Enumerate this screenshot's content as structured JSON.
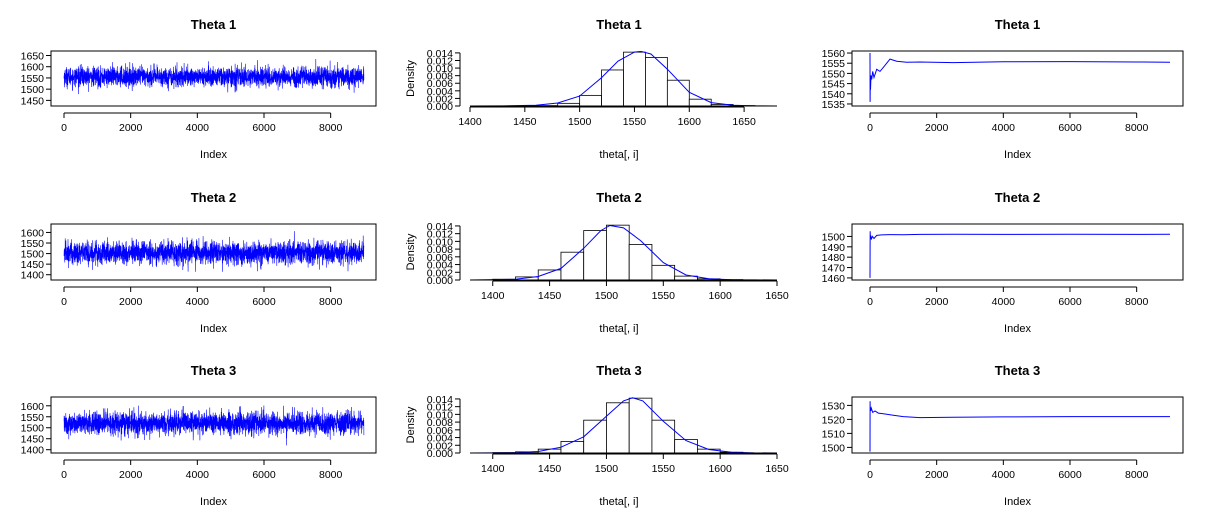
{
  "colors": {
    "line": "#0000ff",
    "axis": "#000000",
    "hist_fill": "#ffffff",
    "background": "#ffffff"
  },
  "chart_data": [
    {
      "panel": "trace-1",
      "type": "line",
      "title": "Theta 1",
      "xlabel": "Index",
      "ylabel": "",
      "xlim": [
        0,
        9000
      ],
      "ylim": [
        1425,
        1670
      ],
      "xticks": [
        0,
        2000,
        4000,
        6000,
        8000
      ],
      "yticks": [
        1450,
        1500,
        1550,
        1600,
        1650
      ],
      "n_iterations": 9000,
      "center": 1555,
      "spread": 22,
      "range": [
        1425,
        1670
      ],
      "grid": false
    },
    {
      "panel": "hist-1",
      "type": "bar",
      "title": "Theta 1",
      "xlabel": "theta[, i]",
      "ylabel": "Density",
      "xlim": [
        1400,
        1680
      ],
      "ylim": [
        0,
        0.0145
      ],
      "xticks": [
        1400,
        1450,
        1500,
        1550,
        1600,
        1650
      ],
      "yticks": [
        0.0,
        0.002,
        0.004,
        0.006,
        0.008,
        0.01,
        0.012,
        0.014
      ],
      "ytick_labels": [
        "0.000",
        "0.002",
        "0.004",
        "0.006",
        "0.008",
        "0.010",
        "0.012",
        "0.014"
      ],
      "bin_edges": [
        1460,
        1480,
        1500,
        1520,
        1540,
        1560,
        1580,
        1600,
        1620,
        1640,
        1660
      ],
      "values": [
        0.0001,
        0.0007,
        0.0028,
        0.0095,
        0.0142,
        0.0128,
        0.0068,
        0.0018,
        0.0004,
        0.0001
      ],
      "density_curve": {
        "x": [
          1400,
          1430,
          1460,
          1480,
          1500,
          1520,
          1535,
          1550,
          1556,
          1565,
          1580,
          1600,
          1620,
          1640,
          1660,
          1680
        ],
        "y": [
          0,
          2e-05,
          0.0002,
          0.0008,
          0.0026,
          0.0075,
          0.0118,
          0.0142,
          0.0144,
          0.0137,
          0.0097,
          0.0036,
          0.0009,
          0.00018,
          3e-05,
          0
        ]
      },
      "series": [
        {
          "name": "",
          "role": "density"
        }
      ],
      "grid": false
    },
    {
      "panel": "running-mean-1",
      "type": "line",
      "title": "Theta 1",
      "xlabel": "Index",
      "ylabel": "",
      "xlim": [
        0,
        9000
      ],
      "ylim": [
        1534,
        1561
      ],
      "xticks": [
        0,
        2000,
        4000,
        6000,
        8000
      ],
      "yticks": [
        1535,
        1540,
        1545,
        1550,
        1555,
        1560
      ],
      "x": [
        1,
        4,
        8,
        15,
        30,
        50,
        80,
        120,
        200,
        300,
        450,
        600,
        800,
        1100,
        1500,
        2500,
        4000,
        6000,
        8000,
        9000
      ],
      "y": [
        1560,
        1536,
        1548,
        1542,
        1549,
        1547,
        1551,
        1548,
        1552,
        1551,
        1554,
        1557,
        1556,
        1555.5,
        1555.6,
        1555.3,
        1555.7,
        1555.8,
        1555.6,
        1555.5
      ],
      "grid": false
    },
    {
      "panel": "trace-2",
      "type": "line",
      "title": "Theta 2",
      "xlabel": "Index",
      "ylabel": "",
      "xlim": [
        0,
        9000
      ],
      "ylim": [
        1375,
        1640
      ],
      "xticks": [
        0,
        2000,
        4000,
        6000,
        8000
      ],
      "yticks": [
        1400,
        1450,
        1500,
        1550,
        1600
      ],
      "n_iterations": 9000,
      "center": 1503,
      "spread": 28,
      "range": [
        1385,
        1630
      ],
      "grid": false
    },
    {
      "panel": "hist-2",
      "type": "bar",
      "title": "Theta 2",
      "xlabel": "theta[, i]",
      "ylabel": "Density",
      "xlim": [
        1380,
        1650
      ],
      "ylim": [
        0,
        0.0145
      ],
      "xticks": [
        1400,
        1450,
        1500,
        1550,
        1600,
        1650
      ],
      "yticks": [
        0.0,
        0.002,
        0.004,
        0.006,
        0.008,
        0.01,
        0.012,
        0.014
      ],
      "ytick_labels": [
        "0.000",
        "0.002",
        "0.004",
        "0.006",
        "0.008",
        "0.010",
        "0.012",
        "0.014"
      ],
      "bin_edges": [
        1400,
        1420,
        1440,
        1460,
        1480,
        1500,
        1520,
        1540,
        1560,
        1580,
        1600,
        1620
      ],
      "values": [
        0.0002,
        0.0008,
        0.0026,
        0.0072,
        0.0128,
        0.0142,
        0.0092,
        0.0038,
        0.001,
        0.0003,
        0.0001
      ],
      "density_curve": {
        "x": [
          1380,
          1420,
          1440,
          1460,
          1480,
          1495,
          1503,
          1515,
          1530,
          1550,
          1570,
          1590,
          1610,
          1630,
          1650
        ],
        "y": [
          0,
          0.0002,
          0.0009,
          0.003,
          0.0082,
          0.0128,
          0.0141,
          0.0135,
          0.0102,
          0.0045,
          0.0013,
          0.0003,
          8e-05,
          2e-05,
          0
        ]
      },
      "series": [
        {
          "name": "",
          "role": "density"
        }
      ],
      "grid": false
    },
    {
      "panel": "running-mean-2",
      "type": "line",
      "title": "Theta 2",
      "xlabel": "Index",
      "ylabel": "",
      "xlim": [
        0,
        9000
      ],
      "ylim": [
        1458,
        1512
      ],
      "xticks": [
        0,
        2000,
        4000,
        6000,
        8000
      ],
      "yticks": [
        1460,
        1470,
        1480,
        1490,
        1500
      ],
      "x": [
        1,
        3,
        6,
        10,
        20,
        40,
        70,
        120,
        200,
        350,
        600,
        1000,
        1500,
        2500,
        4000,
        6000,
        8000,
        9000
      ],
      "y": [
        1460,
        1492,
        1505,
        1498,
        1501,
        1497,
        1500,
        1498,
        1501,
        1501.5,
        1501.8,
        1501.7,
        1502,
        1502.2,
        1502,
        1502.2,
        1502,
        1502.1
      ],
      "grid": false
    },
    {
      "panel": "trace-3",
      "type": "line",
      "title": "Theta 3",
      "xlabel": "Index",
      "ylabel": "",
      "xlim": [
        0,
        9000
      ],
      "ylim": [
        1385,
        1640
      ],
      "xticks": [
        0,
        2000,
        4000,
        6000,
        8000
      ],
      "yticks": [
        1400,
        1450,
        1500,
        1550,
        1600
      ],
      "n_iterations": 9000,
      "center": 1521,
      "spread": 26,
      "range": [
        1395,
        1630
      ],
      "grid": false
    },
    {
      "panel": "hist-3",
      "type": "bar",
      "title": "Theta 3",
      "xlabel": "theta[, i]",
      "ylabel": "Density",
      "xlim": [
        1380,
        1650
      ],
      "ylim": [
        0,
        0.0145
      ],
      "xticks": [
        1400,
        1450,
        1500,
        1550,
        1600,
        1650
      ],
      "yticks": [
        0.0,
        0.002,
        0.004,
        0.006,
        0.008,
        0.01,
        0.012,
        0.014
      ],
      "ytick_labels": [
        "0.000",
        "0.002",
        "0.004",
        "0.006",
        "0.008",
        "0.010",
        "0.012",
        "0.014"
      ],
      "bin_edges": [
        1400,
        1420,
        1440,
        1460,
        1480,
        1500,
        1520,
        1540,
        1560,
        1580,
        1600,
        1620
      ],
      "values": [
        0.0001,
        0.0003,
        0.001,
        0.003,
        0.0085,
        0.013,
        0.0142,
        0.0085,
        0.0035,
        0.001,
        0.0002
      ],
      "density_curve": {
        "x": [
          1380,
          1420,
          1440,
          1460,
          1480,
          1500,
          1515,
          1523,
          1532,
          1550,
          1570,
          1590,
          1610,
          1630,
          1650
        ],
        "y": [
          0,
          8e-05,
          0.0004,
          0.0015,
          0.0042,
          0.0095,
          0.0135,
          0.0143,
          0.0135,
          0.0082,
          0.0032,
          0.0009,
          0.0002,
          3e-05,
          0
        ]
      },
      "series": [
        {
          "name": "",
          "role": "density"
        }
      ],
      "grid": false
    },
    {
      "panel": "running-mean-3",
      "type": "line",
      "title": "Theta 3",
      "xlabel": "Index",
      "ylabel": "",
      "xlim": [
        0,
        9000
      ],
      "ylim": [
        1496,
        1536
      ],
      "xticks": [
        0,
        2000,
        4000,
        6000,
        8000
      ],
      "yticks": [
        1500,
        1510,
        1520,
        1530
      ],
      "x": [
        1,
        3,
        6,
        10,
        20,
        40,
        80,
        150,
        250,
        400,
        700,
        1000,
        1500,
        2500,
        4000,
        6000,
        8000,
        9000
      ],
      "y": [
        1497,
        1533,
        1526,
        1529,
        1526,
        1528,
        1525,
        1526,
        1524.5,
        1524,
        1523,
        1522,
        1521.3,
        1521.5,
        1521.8,
        1522,
        1522,
        1522
      ],
      "grid": false
    }
  ]
}
